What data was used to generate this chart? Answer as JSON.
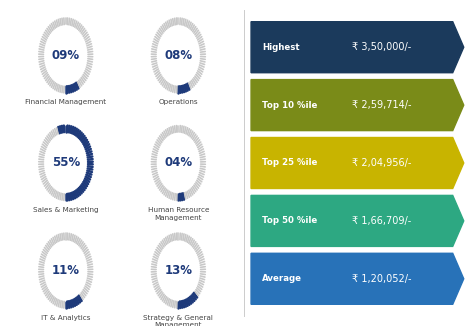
{
  "bg_color": "#f0f0f0",
  "circles": [
    {
      "pct": 9,
      "label": "Financial Management",
      "row": 0,
      "col": 0
    },
    {
      "pct": 8,
      "label": "Operations",
      "row": 0,
      "col": 1
    },
    {
      "pct": 55,
      "label": "Sales & Marketing",
      "row": 1,
      "col": 0
    },
    {
      "pct": 4,
      "label": "Human Resource\nManagement",
      "row": 1,
      "col": 1
    },
    {
      "pct": 11,
      "label": "IT & Analytics",
      "row": 2,
      "col": 0
    },
    {
      "pct": 13,
      "label": "Strategy & General\nManagement",
      "row": 2,
      "col": 1
    }
  ],
  "circle_color_main": "#1e3a7a",
  "circle_color_bg": "#c8c8c8",
  "circle_text_color": "#1e3a7a",
  "label_text_color": "#444444",
  "bars": [
    {
      "label": "Highest",
      "value": "₹ 3,50,000/-",
      "color": "#1b3a5c"
    },
    {
      "label": "Top 10 %ile",
      "value": "₹ 2,59,714/-",
      "color": "#7a8b18"
    },
    {
      "label": "Top 25 %ile",
      "value": "₹ 2,04,956/-",
      "color": "#c8b400"
    },
    {
      "label": "Top 50 %ile",
      "value": "₹ 1,66,709/-",
      "color": "#2da882"
    },
    {
      "label": "Average",
      "value": "₹ 1,20,052/-",
      "color": "#2872b8"
    }
  ],
  "bar_text_color": "#ffffff"
}
